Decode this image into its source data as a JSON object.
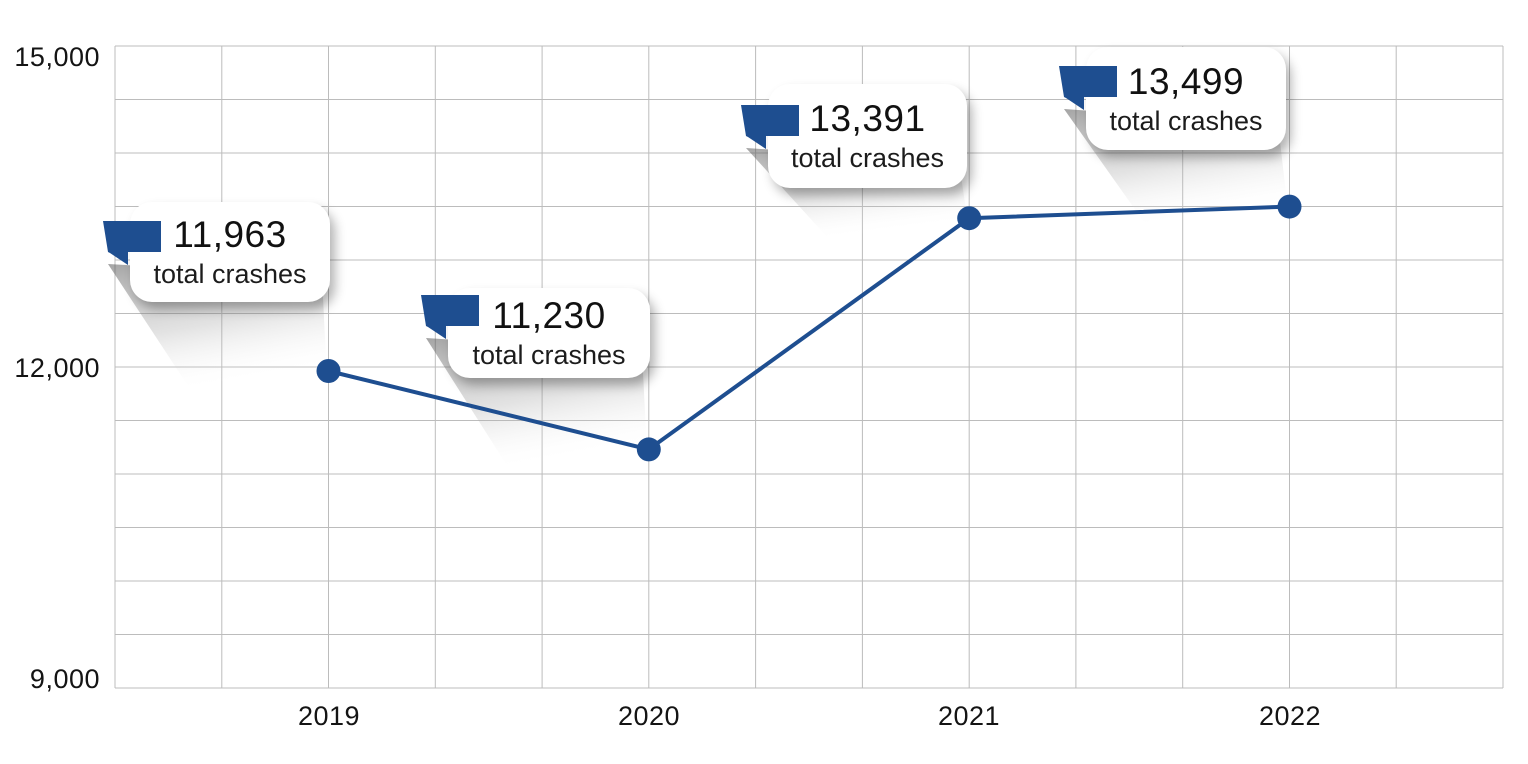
{
  "chart_data": {
    "type": "line",
    "title": "",
    "xlabel": "",
    "ylabel": "",
    "categories": [
      "2019",
      "2020",
      "2021",
      "2022"
    ],
    "series": [
      {
        "name": "total crashes",
        "values": [
          11963,
          11230,
          13391,
          13499
        ]
      }
    ],
    "ylim": [
      9000,
      15000
    ],
    "y_ticks": [
      {
        "value": 15000,
        "label": "15,000"
      },
      {
        "value": 12000,
        "label": "12,000"
      },
      {
        "value": 9000,
        "label": "9,000"
      }
    ],
    "grid": {
      "shown": true,
      "y_step": 500,
      "x_minor_divisions_per_category": 3
    },
    "legend_position": "none",
    "annotations": [
      {
        "x": "2019",
        "value": 11963,
        "value_label": "11,963",
        "caption": "total crashes"
      },
      {
        "x": "2020",
        "value": 11230,
        "value_label": "11,230",
        "caption": "total crashes"
      },
      {
        "x": "2021",
        "value": 13391,
        "value_label": "13,391",
        "caption": "total crashes"
      },
      {
        "x": "2022",
        "value": 13499,
        "value_label": "13,499",
        "caption": "total crashes"
      }
    ],
    "colors": {
      "line": "#1e4e90",
      "marker": "#1e4e90",
      "callout_icon": "#1e4e90",
      "grid": "#bcbcbc",
      "text": "#141414",
      "callout_bg": "#ffffff"
    }
  }
}
